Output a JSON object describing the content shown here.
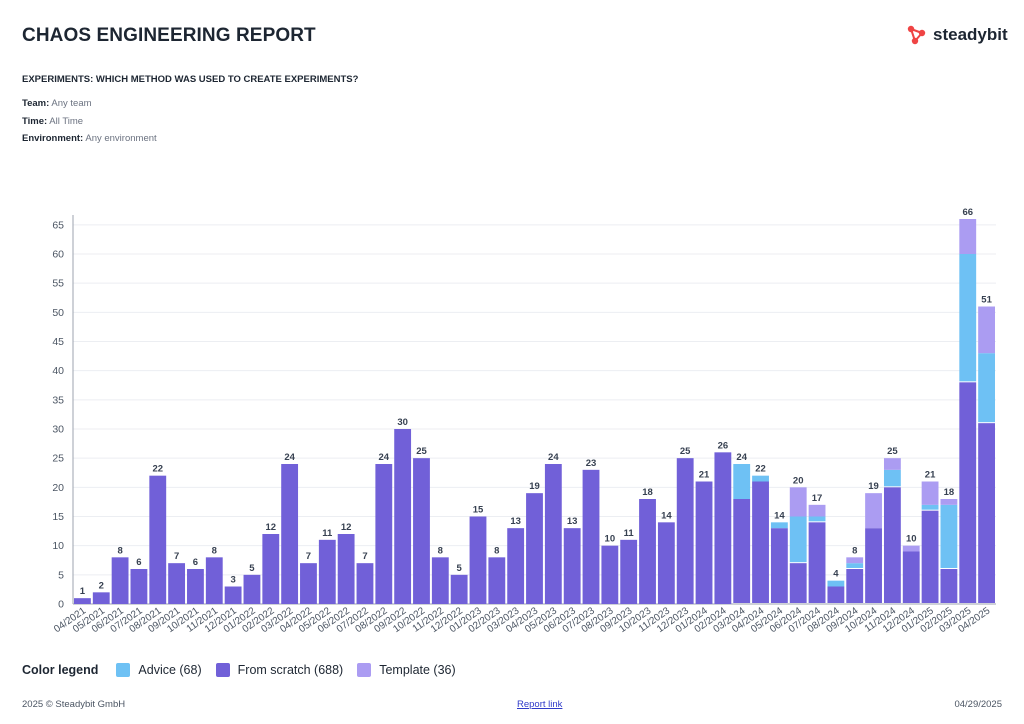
{
  "header": {
    "title": "CHAOS ENGINEERING REPORT",
    "brand": "steadybit",
    "subtitle": "EXPERIMENTS: WHICH METHOD WAS USED TO CREATE EXPERIMENTS?"
  },
  "filters": [
    {
      "label": "Team:",
      "value": "Any team"
    },
    {
      "label": "Time:",
      "value": "All Time"
    },
    {
      "label": "Environment:",
      "value": "Any environment"
    }
  ],
  "legend": {
    "title": "Color legend",
    "items": [
      {
        "label": "Advice (68)",
        "color": "#6ec1f4"
      },
      {
        "label": "From scratch (688)",
        "color": "#7160d8"
      },
      {
        "label": "Template (36)",
        "color": "#ab9cf2"
      }
    ]
  },
  "footer": {
    "copyright": "2025 © Steadybit GmbH",
    "link": "Report link",
    "date": "04/29/2025"
  },
  "colors": {
    "scratch": "#7160d8",
    "advice": "#6ec1f4",
    "template": "#ab9cf2",
    "brand": "#ef4444"
  },
  "chart_data": {
    "type": "bar",
    "stacked": true,
    "ylim": [
      0,
      66
    ],
    "yticks": [
      0,
      5,
      10,
      15,
      20,
      25,
      30,
      35,
      40,
      45,
      50,
      55,
      60,
      65
    ],
    "grid": true,
    "categories": [
      "04/2021",
      "05/2021",
      "06/2021",
      "07/2021",
      "08/2021",
      "09/2021",
      "10/2021",
      "11/2021",
      "12/2021",
      "01/2022",
      "02/2022",
      "03/2022",
      "04/2022",
      "05/2022",
      "06/2022",
      "07/2022",
      "08/2022",
      "09/2022",
      "10/2022",
      "11/2022",
      "12/2022",
      "01/2023",
      "02/2023",
      "03/2023",
      "04/2023",
      "05/2023",
      "06/2023",
      "07/2023",
      "08/2023",
      "09/2023",
      "10/2023",
      "11/2023",
      "12/2023",
      "01/2024",
      "02/2024",
      "03/2024",
      "04/2024",
      "05/2024",
      "06/2024",
      "07/2024",
      "08/2024",
      "09/2024",
      "10/2024",
      "11/2024",
      "12/2024",
      "01/2025",
      "02/2025",
      "03/2025",
      "04/2025"
    ],
    "series": [
      {
        "name": "From scratch",
        "key": "scratch",
        "values": [
          1,
          2,
          8,
          6,
          22,
          7,
          6,
          8,
          3,
          5,
          12,
          24,
          7,
          11,
          12,
          7,
          24,
          30,
          25,
          8,
          5,
          15,
          8,
          13,
          19,
          24,
          13,
          23,
          10,
          11,
          18,
          14,
          25,
          21,
          26,
          18,
          21,
          13,
          7,
          14,
          3,
          6,
          13,
          20,
          9,
          16,
          6,
          38,
          31
        ]
      },
      {
        "name": "Advice",
        "key": "advice",
        "values": [
          0,
          0,
          0,
          0,
          0,
          0,
          0,
          0,
          0,
          0,
          0,
          0,
          0,
          0,
          0,
          0,
          0,
          0,
          0,
          0,
          0,
          0,
          0,
          0,
          0,
          0,
          0,
          0,
          0,
          0,
          0,
          0,
          0,
          0,
          0,
          6,
          1,
          1,
          8,
          1,
          1,
          1,
          0,
          3,
          0,
          1,
          11,
          22,
          12
        ]
      },
      {
        "name": "Template",
        "key": "template",
        "values": [
          0,
          0,
          0,
          0,
          0,
          0,
          0,
          0,
          0,
          0,
          0,
          0,
          0,
          0,
          0,
          0,
          0,
          0,
          0,
          0,
          0,
          0,
          0,
          0,
          0,
          0,
          0,
          0,
          0,
          0,
          0,
          0,
          0,
          0,
          0,
          0,
          0,
          0,
          5,
          2,
          0,
          1,
          6,
          2,
          1,
          4,
          1,
          6,
          8
        ]
      }
    ],
    "totals": [
      1,
      2,
      8,
      6,
      22,
      7,
      6,
      8,
      3,
      5,
      12,
      24,
      7,
      11,
      12,
      7,
      24,
      30,
      25,
      8,
      5,
      15,
      8,
      13,
      19,
      24,
      13,
      23,
      10,
      11,
      18,
      14,
      25,
      21,
      26,
      24,
      22,
      14,
      20,
      17,
      4,
      8,
      19,
      25,
      10,
      21,
      18,
      66,
      51
    ]
  }
}
